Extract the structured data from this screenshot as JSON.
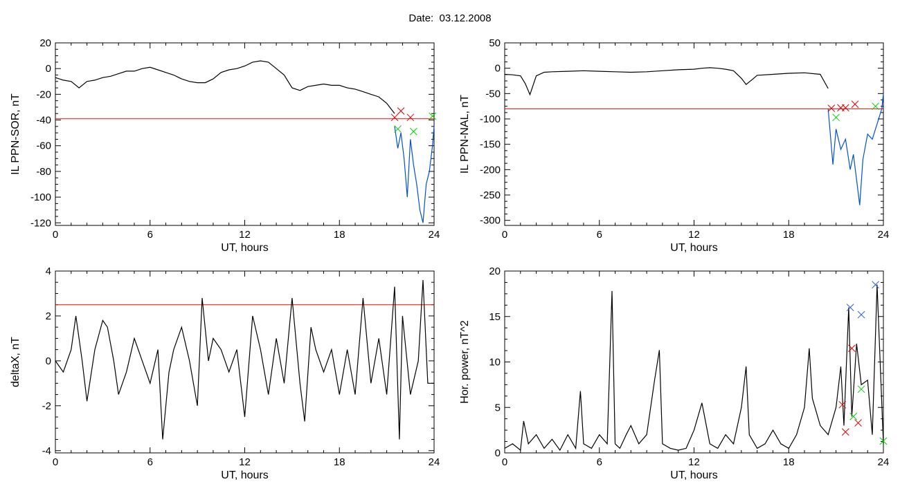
{
  "page": {
    "title": "Date:  03.12.2008"
  },
  "colors": {
    "trace": "#000000",
    "threshold": "#ff0000",
    "blue": "#0050d0",
    "green": "#00cc00",
    "red_marker": "#dd0000",
    "blue_marker": "#3060e0"
  },
  "chart_data": [
    {
      "id": "sor",
      "type": "line",
      "xlabel": "UT, hours",
      "ylabel": "IL PPN-SOR, nT",
      "xlim": [
        0,
        24
      ],
      "ylim": [
        -122,
        20
      ],
      "xticks": [
        0,
        6,
        12,
        18,
        24
      ],
      "yticks": [
        20,
        0,
        -20,
        -40,
        -60,
        -80,
        -100,
        -120
      ],
      "threshold": -39,
      "series": [
        {
          "color": "black",
          "x": [
            0,
            0.5,
            1,
            1.5,
            2,
            2.5,
            3,
            3.5,
            4,
            4.5,
            5,
            5.5,
            6,
            6.5,
            7,
            7.5,
            8,
            8.5,
            9,
            9.5,
            10,
            10.5,
            11,
            11.5,
            12,
            12.5,
            13,
            13.5,
            14,
            14.5,
            15,
            15.5,
            16,
            16.5,
            17,
            17.5,
            18,
            18.5,
            19,
            19.5,
            20,
            20.5,
            21,
            21.5
          ],
          "y": [
            -7,
            -9,
            -10,
            -15,
            -10,
            -9,
            -7,
            -6,
            -4,
            -2,
            -2,
            0,
            1,
            -1,
            -3,
            -5,
            -8,
            -10,
            -11,
            -11,
            -8,
            -3,
            -1,
            0,
            2,
            5,
            6,
            5,
            0,
            -5,
            -15,
            -17,
            -14,
            -13,
            -12,
            -13,
            -13,
            -15,
            -16,
            -18,
            -20,
            -22,
            -27,
            -35
          ]
        },
        {
          "color": "blue",
          "x": [
            21.5,
            21.7,
            21.9,
            22.1,
            22.3,
            22.5,
            22.7,
            22.9,
            23.1,
            23.3,
            23.5,
            23.7,
            23.9,
            24
          ],
          "y": [
            -45,
            -62,
            -50,
            -70,
            -100,
            -55,
            -75,
            -90,
            -110,
            -120,
            -90,
            -80,
            -60,
            -45
          ]
        }
      ],
      "red_markers": {
        "x": [
          21.5,
          21.9,
          22.5
        ],
        "y": [
          -38,
          -33,
          -38
        ]
      },
      "green_markers": {
        "x": [
          21.7,
          22.7,
          23.9
        ],
        "y": [
          -47,
          -49,
          -37
        ]
      },
      "blue_markers": {
        "x": [],
        "y": []
      }
    },
    {
      "id": "nal",
      "type": "line",
      "xlabel": "UT, hours",
      "ylabel": "IL PPN-NAL, nT",
      "xlim": [
        0,
        24
      ],
      "ylim": [
        -310,
        50
      ],
      "xticks": [
        0,
        6,
        12,
        18,
        24
      ],
      "yticks": [
        50,
        0,
        -50,
        -100,
        -150,
        -200,
        -250,
        -300
      ],
      "threshold": -80,
      "series": [
        {
          "color": "black",
          "x": [
            0,
            0.5,
            1,
            1.3,
            1.6,
            2,
            2.5,
            3,
            4,
            5,
            6,
            7,
            8,
            9,
            10,
            11,
            12,
            12.5,
            13,
            13.5,
            14,
            14.5,
            15,
            15.3,
            15.7,
            16,
            17,
            18,
            19,
            20,
            20.5
          ],
          "y": [
            -12,
            -13,
            -15,
            -30,
            -52,
            -15,
            -8,
            -7,
            -6,
            -5,
            -6,
            -7,
            -8,
            -7,
            -5,
            -3,
            -2,
            0,
            1,
            0,
            -2,
            -5,
            -20,
            -32,
            -22,
            -14,
            -12,
            -10,
            -9,
            -12,
            -40
          ]
        },
        {
          "color": "blue",
          "x": [
            20.5,
            20.8,
            21,
            21.3,
            21.6,
            21.9,
            22.1,
            22.3,
            22.5,
            22.7,
            23,
            23.3,
            23.6,
            23.9,
            24
          ],
          "y": [
            -80,
            -190,
            -120,
            -160,
            -140,
            -200,
            -170,
            -220,
            -270,
            -180,
            -130,
            -140,
            -110,
            -80,
            -50
          ]
        }
      ],
      "red_markers": {
        "x": [
          20.7,
          21.3,
          21.6,
          22.2
        ],
        "y": [
          -79,
          -78,
          -78,
          -71
        ]
      },
      "green_markers": {
        "x": [
          21.0,
          23.5
        ],
        "y": [
          -97,
          -75
        ]
      },
      "blue_markers": {
        "x": [],
        "y": []
      }
    },
    {
      "id": "deltax",
      "type": "line",
      "xlabel": "UT, hours",
      "ylabel": "deltaX, nT",
      "xlim": [
        0,
        24
      ],
      "ylim": [
        -4.1,
        4
      ],
      "xticks": [
        0,
        6,
        12,
        18,
        24
      ],
      "yticks": [
        4,
        2,
        0,
        -2,
        -4
      ],
      "threshold": 2.5,
      "series": [
        {
          "color": "black",
          "x": [
            0,
            0.5,
            1,
            1.3,
            1.7,
            2,
            2.5,
            3,
            3.3,
            3.7,
            4,
            4.5,
            5,
            5.5,
            6,
            6.5,
            6.8,
            7.2,
            7.5,
            8,
            8.5,
            9,
            9.3,
            9.7,
            10,
            10.5,
            11,
            11.5,
            12,
            12.5,
            13,
            13.5,
            14,
            14.5,
            15,
            15.5,
            15.8,
            16.2,
            16.5,
            17,
            17.5,
            18,
            18.5,
            19,
            19.5,
            20,
            20.5,
            21,
            21.5,
            21.8,
            22,
            22.5,
            23,
            23.3,
            23.6,
            24
          ],
          "y": [
            0,
            -0.5,
            0.5,
            2,
            0,
            -1.8,
            0.5,
            1.8,
            1.5,
            0,
            -1.5,
            -0.5,
            1,
            0,
            -1,
            0.5,
            -3.5,
            -0.5,
            0.5,
            1.5,
            0,
            -2,
            2.8,
            0,
            1,
            0.5,
            -0.5,
            0.5,
            -2.5,
            2,
            0.5,
            -1.5,
            1,
            -1,
            2.8,
            -1,
            -2.7,
            1.5,
            0.5,
            -0.5,
            0.5,
            -1.5,
            0.5,
            -1.5,
            2.8,
            -1,
            1,
            -1.5,
            3.3,
            -3.5,
            2,
            -1.5,
            0,
            3.6,
            -1,
            -1
          ]
        }
      ],
      "red_markers": {
        "x": [],
        "y": []
      },
      "green_markers": {
        "x": [],
        "y": []
      },
      "blue_markers": {
        "x": [],
        "y": []
      }
    },
    {
      "id": "power",
      "type": "line",
      "xlabel": "UT, hours",
      "ylabel": "Hor. power, nT^2",
      "xlim": [
        0,
        24
      ],
      "ylim": [
        0,
        20
      ],
      "xticks": [
        0,
        6,
        12,
        18,
        24
      ],
      "yticks": [
        20,
        15,
        10,
        5,
        0
      ],
      "threshold": null,
      "series": [
        {
          "color": "black",
          "x": [
            0,
            0.5,
            1,
            1.2,
            1.5,
            2,
            2.5,
            3,
            3.5,
            4,
            4.5,
            4.8,
            5,
            5.5,
            6,
            6.5,
            6.8,
            7,
            7.3,
            7.7,
            8,
            8.5,
            9,
            9.5,
            9.8,
            10,
            10.5,
            11,
            11.5,
            12,
            12.5,
            13,
            13.5,
            14,
            14.5,
            15,
            15.3,
            15.5,
            16,
            16.5,
            17,
            17.5,
            18,
            18.5,
            19,
            19.3,
            19.5,
            20,
            20.5,
            21,
            21.3,
            21.5,
            21.8,
            22,
            22.3,
            22.6,
            23,
            23.3,
            23.6,
            24
          ],
          "y": [
            0.5,
            1,
            0.3,
            3.5,
            1,
            2,
            0.5,
            1.5,
            0.3,
            2,
            0.5,
            6.8,
            1,
            0.5,
            2,
            1,
            17.8,
            1,
            0.5,
            2,
            3,
            1,
            2,
            8,
            11.3,
            1,
            0.5,
            0.3,
            0.5,
            2.5,
            5.5,
            1,
            0.5,
            2,
            1,
            5,
            9.5,
            2,
            0.5,
            1,
            2.5,
            1,
            0.5,
            2,
            5,
            11.5,
            6,
            3,
            2,
            5,
            9.5,
            3,
            16,
            4,
            12,
            7.5,
            8,
            2,
            18.5,
            1
          ]
        }
      ],
      "red_markers": {
        "x": [
          21.4,
          21.6,
          22.0,
          22.4
        ],
        "y": [
          5.3,
          2.3,
          11.5,
          3.3
        ]
      },
      "green_markers": {
        "x": [
          22.1,
          22.6,
          24.0
        ],
        "y": [
          4,
          7,
          1.3
        ]
      },
      "blue_markers": {
        "x": [
          21.9,
          22.6,
          23.5
        ],
        "y": [
          16.0,
          15.2,
          18.5
        ]
      }
    }
  ]
}
